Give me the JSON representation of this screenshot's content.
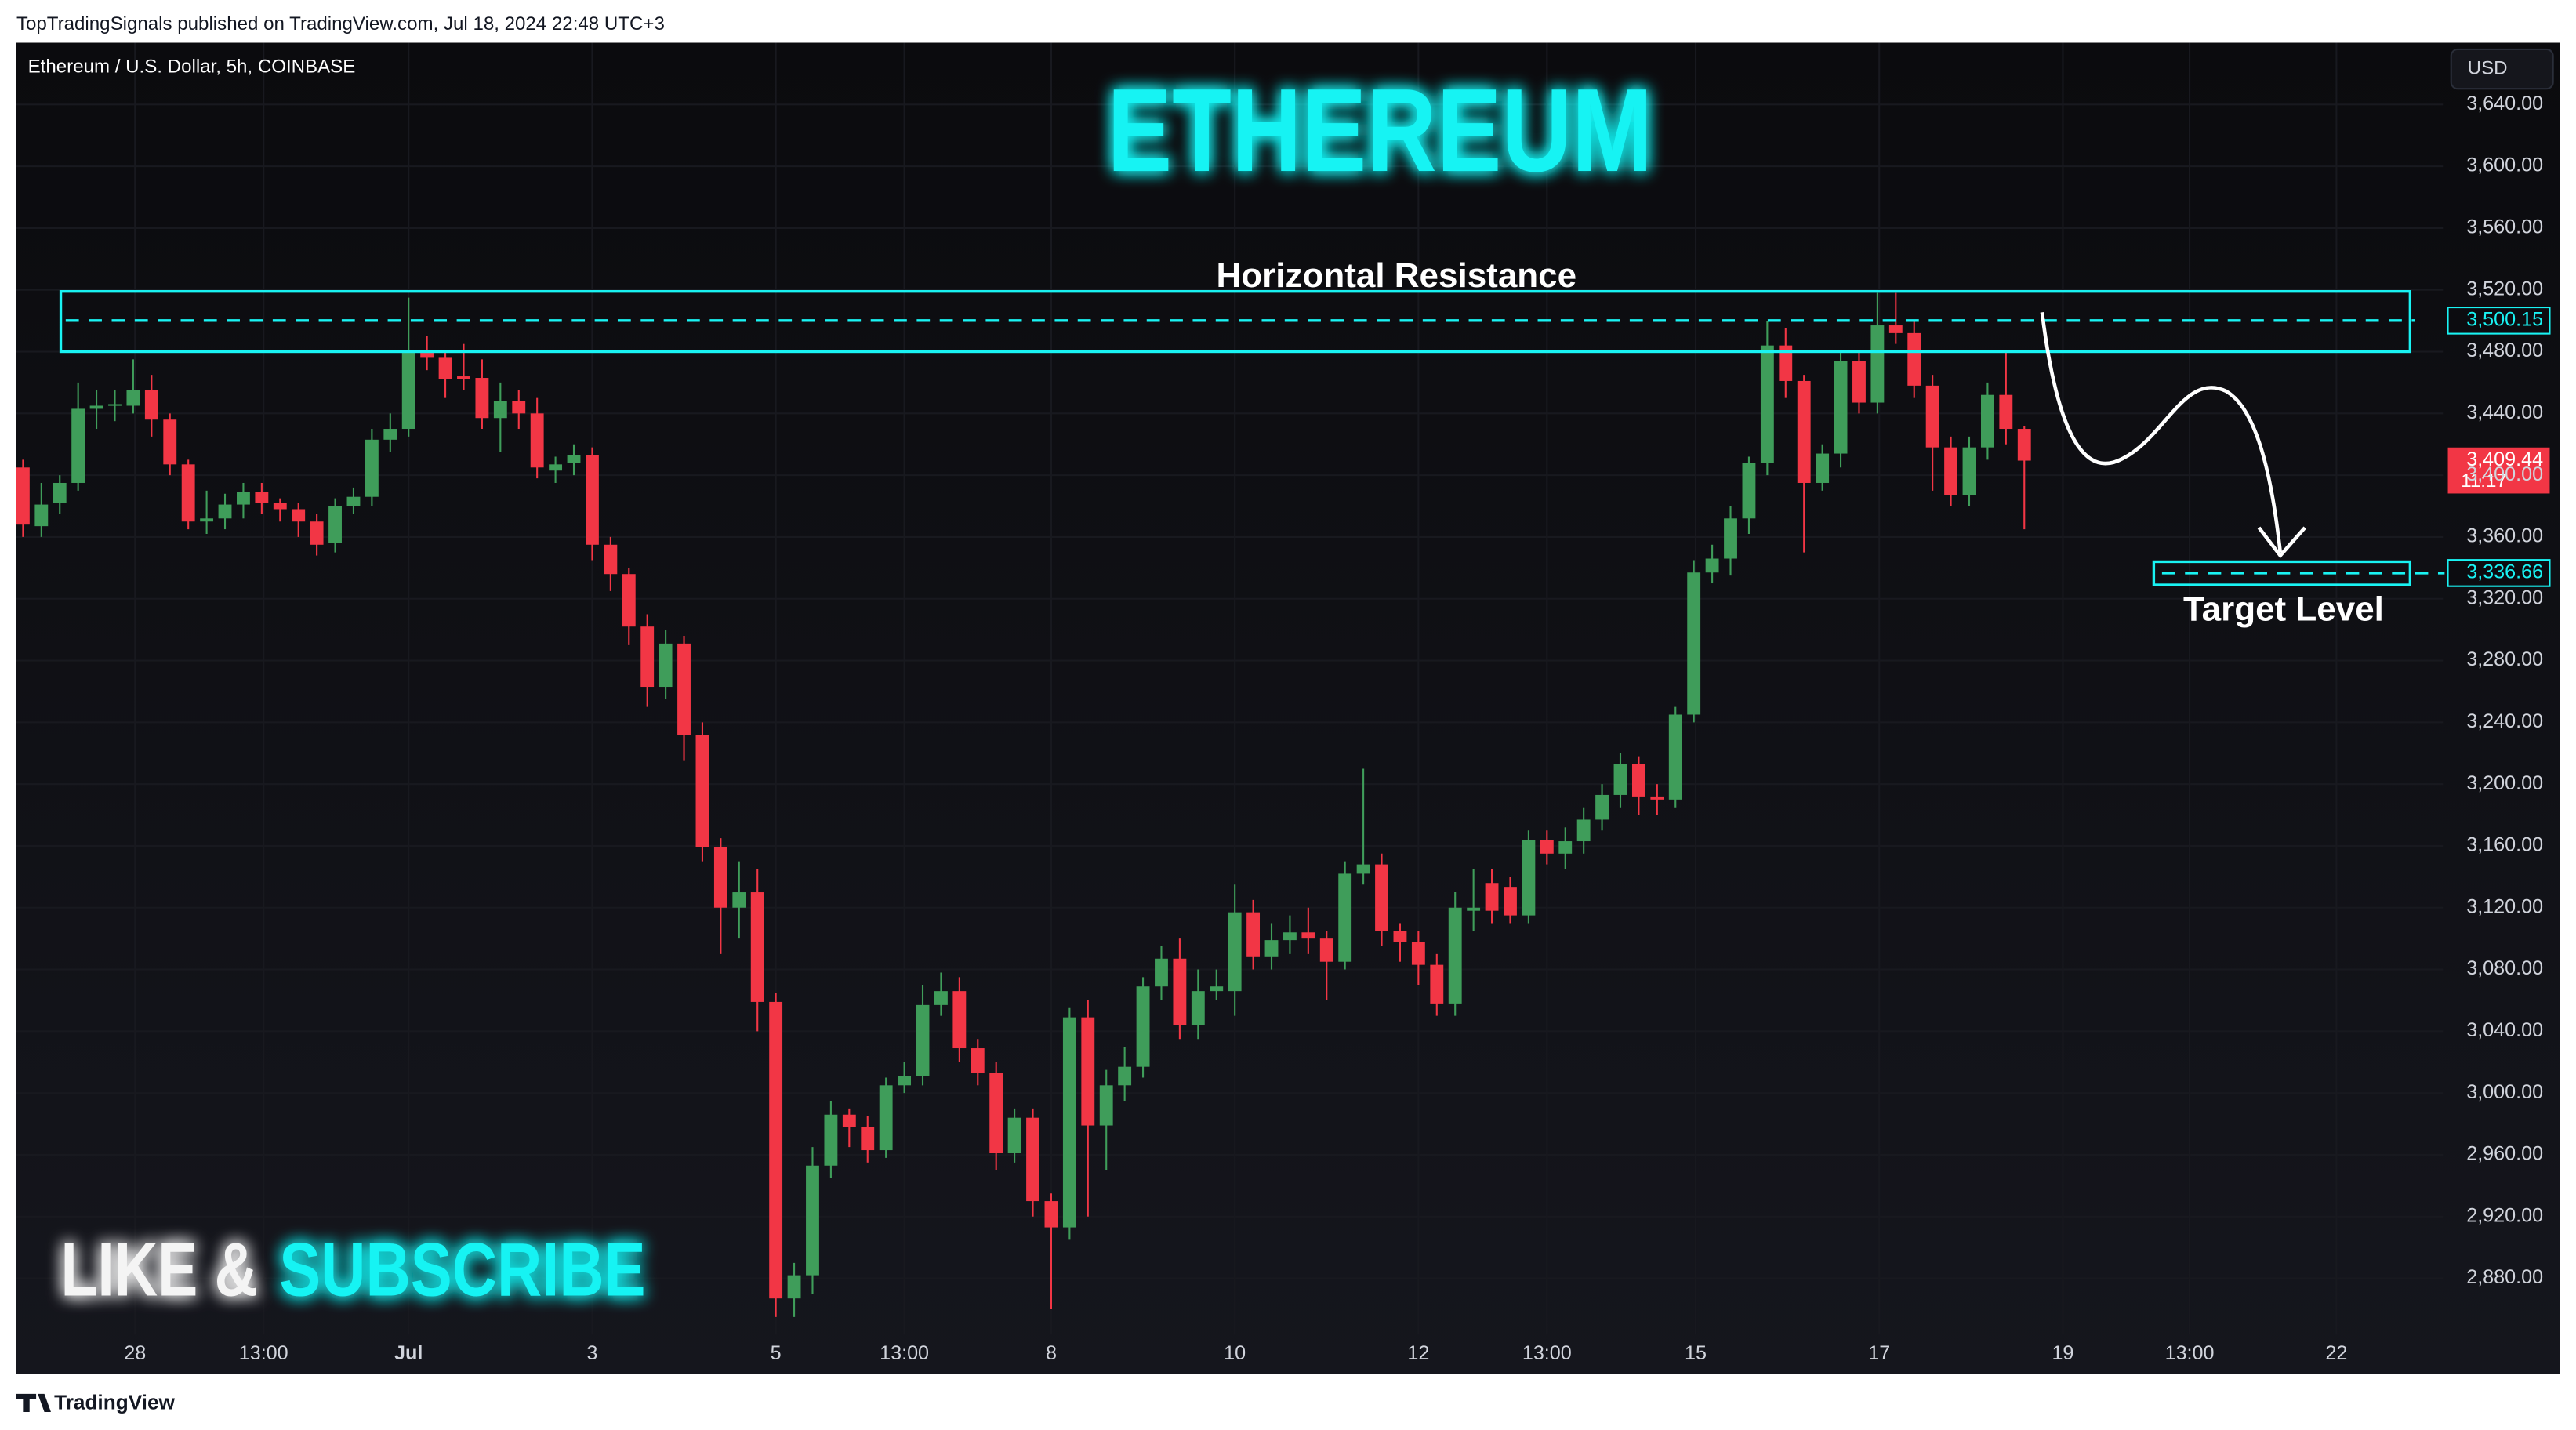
{
  "chart_data": {
    "type": "candlestick",
    "header": "TopTradingSignals published on TradingView.com, Jul 18, 2024 22:48 UTC+3",
    "symbol": "Ethereum / U.S. Dollar, 5h, COINBASE",
    "currency": "USD",
    "brand": "TradingView",
    "title": "ETHEREUM",
    "cta": [
      "LIKE &",
      "SUBSCRIBE"
    ],
    "up_color": "#3f9d5a",
    "down_color": "#f23645",
    "accent_color": "#19f3f3",
    "grid": true,
    "open": [
      3405,
      3367,
      3382,
      3395,
      3443,
      3445,
      3445,
      3455,
      3436,
      3407,
      3370,
      3372,
      3381,
      3389,
      3382,
      3378,
      3370,
      3356,
      3380,
      3386,
      3423,
      3430,
      3481,
      3476,
      3464,
      3463,
      3437,
      3448,
      3440,
      3403,
      3408,
      3413,
      3355,
      3336,
      3302,
      3263,
      3291,
      3232,
      3159,
      3120,
      3130,
      3059,
      2867,
      2882,
      2953,
      2986,
      2978,
      2963,
      3005,
      3011,
      3057,
      3066,
      3029,
      3013,
      2961,
      2984,
      2930,
      2913,
      3049,
      2979,
      3005,
      3017,
      3069,
      3087,
      3044,
      3066,
      3066,
      3117,
      3088,
      3099,
      3104,
      3100,
      3085,
      3142,
      3148,
      3105,
      3098,
      3083,
      3058,
      3118,
      3136,
      3133,
      3115,
      3164,
      3155,
      3163,
      3177,
      3193,
      3213,
      3192,
      3190,
      3245,
      3337,
      3346,
      3372,
      3408,
      3484,
      3461,
      3395,
      3414,
      3474,
      3447,
      3497,
      3492,
      3458,
      3418,
      3387,
      3418,
      3452,
      3430
    ],
    "high": [
      3410,
      3395,
      3400,
      3460,
      3455,
      3455,
      3475,
      3465,
      3440,
      3410,
      3390,
      3388,
      3395,
      3395,
      3385,
      3382,
      3375,
      3385,
      3392,
      3430,
      3440,
      3515,
      3490,
      3480,
      3485,
      3475,
      3460,
      3455,
      3450,
      3412,
      3420,
      3418,
      3360,
      3340,
      3310,
      3300,
      3296,
      3240,
      3165,
      3150,
      3145,
      3065,
      2890,
      2965,
      2995,
      2990,
      2985,
      3010,
      3020,
      3070,
      3078,
      3075,
      3035,
      3020,
      2990,
      2990,
      2935,
      3055,
      3060,
      3015,
      3030,
      3075,
      3095,
      3100,
      3080,
      3080,
      3135,
      3125,
      3110,
      3115,
      3120,
      3105,
      3150,
      3210,
      3155,
      3110,
      3105,
      3090,
      3130,
      3145,
      3145,
      3140,
      3170,
      3170,
      3172,
      3185,
      3200,
      3220,
      3218,
      3200,
      3250,
      3345,
      3355,
      3380,
      3412,
      3500,
      3495,
      3465,
      3420,
      3480,
      3480,
      3518,
      3518,
      3500,
      3465,
      3425,
      3425,
      3460,
      3480,
      3432
    ],
    "low": [
      3360,
      3360,
      3375,
      3390,
      3430,
      3435,
      3440,
      3425,
      3400,
      3365,
      3362,
      3365,
      3372,
      3375,
      3370,
      3360,
      3348,
      3350,
      3375,
      3380,
      3415,
      3425,
      3468,
      3450,
      3455,
      3430,
      3415,
      3430,
      3398,
      3395,
      3400,
      3345,
      3325,
      3290,
      3250,
      3255,
      3215,
      3150,
      3090,
      3100,
      3040,
      2855,
      2855,
      2870,
      2945,
      2965,
      2955,
      2958,
      3000,
      3005,
      3050,
      3020,
      3005,
      2950,
      2955,
      2920,
      2860,
      2905,
      2920,
      2950,
      2995,
      3010,
      3060,
      3035,
      3035,
      3060,
      3050,
      3080,
      3080,
      3090,
      3090,
      3060,
      3080,
      3135,
      3095,
      3085,
      3070,
      3050,
      3050,
      3105,
      3110,
      3110,
      3110,
      3148,
      3145,
      3155,
      3170,
      3185,
      3180,
      3180,
      3185,
      3240,
      3330,
      3335,
      3362,
      3400,
      3450,
      3350,
      3390,
      3405,
      3440,
      3440,
      3485,
      3450,
      3390,
      3380,
      3380,
      3410,
      3420,
      3365
    ],
    "close": [
      3368,
      3381,
      3395,
      3443,
      3445,
      3446,
      3455,
      3436,
      3407,
      3370,
      3372,
      3381,
      3389,
      3382,
      3378,
      3370,
      3355,
      3380,
      3386,
      3423,
      3430,
      3481,
      3476,
      3462,
      3462,
      3437,
      3448,
      3440,
      3405,
      3407,
      3413,
      3355,
      3336,
      3302,
      3263,
      3291,
      3232,
      3159,
      3120,
      3130,
      3059,
      2867,
      2882,
      2953,
      2986,
      2978,
      2963,
      3005,
      3011,
      3057,
      3066,
      3029,
      3013,
      2961,
      2984,
      2930,
      2913,
      3049,
      2979,
      3005,
      3017,
      3069,
      3087,
      3044,
      3066,
      3069,
      3117,
      3088,
      3099,
      3104,
      3100,
      3085,
      3142,
      3148,
      3105,
      3098,
      3083,
      3058,
      3120,
      3120,
      3118,
      3115,
      3164,
      3155,
      3163,
      3177,
      3193,
      3213,
      3192,
      3190,
      3245,
      3337,
      3346,
      3372,
      3408,
      3484,
      3461,
      3395,
      3414,
      3474,
      3447,
      3497,
      3492,
      3458,
      3418,
      3387,
      3418,
      3452,
      3430,
      3409.44
    ],
    "last_price": {
      "value": 3409.44,
      "label": "3,409.44"
    },
    "countdown": "11:17",
    "resistance": {
      "label": "Horizontal Resistance",
      "level": {
        "value": 3500.15,
        "label": "3,500.15"
      },
      "zone": [
        3480,
        3519
      ]
    },
    "target": {
      "label": "Target Level",
      "level": {
        "value": 3336.66,
        "label": "3,336.66"
      },
      "zone": [
        3329,
        3344
      ]
    },
    "xlim": [
      -0.36,
      131.8
    ],
    "xticks": [
      {
        "value": 6.1,
        "label": "28"
      },
      {
        "value": 13.1,
        "label": "13:00"
      },
      {
        "value": 21,
        "label": "Jul"
      },
      {
        "value": 31,
        "label": "3"
      },
      {
        "value": 41,
        "label": "5"
      },
      {
        "value": 48,
        "label": "13:00"
      },
      {
        "value": 56,
        "label": "8"
      },
      {
        "value": 66,
        "label": "10"
      },
      {
        "value": 76,
        "label": "12"
      },
      {
        "value": 83,
        "label": "13:00"
      },
      {
        "value": 91.1,
        "label": "15"
      },
      {
        "value": 101.1,
        "label": "17"
      },
      {
        "value": 111.1,
        "label": "19"
      },
      {
        "value": 118,
        "label": "13:00"
      },
      {
        "value": 126,
        "label": "22"
      }
    ],
    "ylim": [
      2818,
      3680
    ],
    "yticks": [
      {
        "value": 2880,
        "label": "2,880.00"
      },
      {
        "value": 2920,
        "label": "2,920.00"
      },
      {
        "value": 2960,
        "label": "2,960.00"
      },
      {
        "value": 3000,
        "label": "3,000.00"
      },
      {
        "value": 3040,
        "label": "3,040.00"
      },
      {
        "value": 3080,
        "label": "3,080.00"
      },
      {
        "value": 3120,
        "label": "3,120.00"
      },
      {
        "value": 3160,
        "label": "3,160.00"
      },
      {
        "value": 3200,
        "label": "3,200.00"
      },
      {
        "value": 3240,
        "label": "3,240.00"
      },
      {
        "value": 3280,
        "label": "3,280.00"
      },
      {
        "value": 3320,
        "label": "3,320.00"
      },
      {
        "value": 3360,
        "label": "3,360.00"
      },
      {
        "value": 3400,
        "label": "3,400.00"
      },
      {
        "value": 3440,
        "label": "3,440.00"
      },
      {
        "value": 3480,
        "label": "3,480.00"
      },
      {
        "value": 3520,
        "label": "3,520.00"
      },
      {
        "value": 3560,
        "label": "3,560.00"
      },
      {
        "value": 3600,
        "label": "3,600.00"
      },
      {
        "value": 3640,
        "label": "3,640.00"
      }
    ]
  }
}
